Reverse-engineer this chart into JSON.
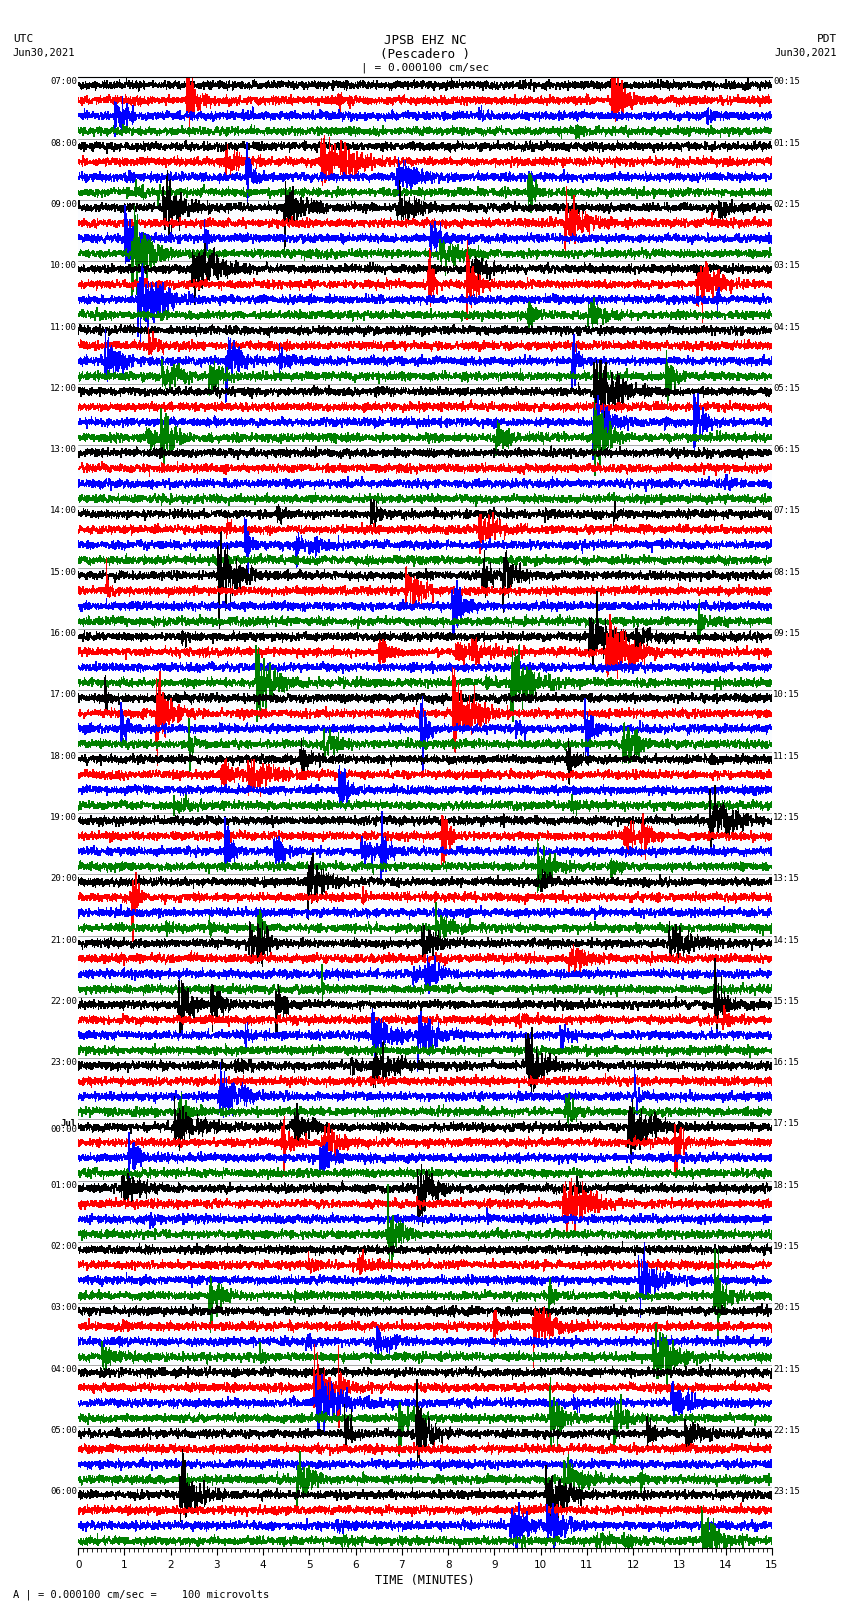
{
  "title_line1": "JPSB EHZ NC",
  "title_line2": "(Pescadero )",
  "scale_label": "| = 0.000100 cm/sec",
  "utc_label1": "UTC",
  "utc_label2": "Jun30,2021",
  "pdt_label1": "PDT",
  "pdt_label2": "Jun30,2021",
  "bottom_label": "A | = 0.000100 cm/sec =    100 microvolts",
  "xlabel": "TIME (MINUTES)",
  "left_times": [
    "07:00",
    "08:00",
    "09:00",
    "10:00",
    "11:00",
    "12:00",
    "13:00",
    "14:00",
    "15:00",
    "16:00",
    "17:00",
    "18:00",
    "19:00",
    "20:00",
    "21:00",
    "22:00",
    "23:00",
    "Jul",
    "01:00",
    "02:00",
    "03:00",
    "04:00",
    "05:00",
    "06:00"
  ],
  "left_times_sub": [
    "",
    "",
    "",
    "",
    "",
    "",
    "",
    "",
    "",
    "",
    "",
    "",
    "",
    "",
    "",
    "",
    "",
    "00:00",
    "",
    "",
    "",
    "",
    "",
    ""
  ],
  "right_times": [
    "00:15",
    "01:15",
    "02:15",
    "03:15",
    "04:15",
    "05:15",
    "06:15",
    "07:15",
    "08:15",
    "09:15",
    "10:15",
    "11:15",
    "12:15",
    "13:15",
    "14:15",
    "15:15",
    "16:15",
    "17:15",
    "18:15",
    "19:15",
    "20:15",
    "21:15",
    "22:15",
    "23:15"
  ],
  "colors": [
    "black",
    "red",
    "blue",
    "green"
  ],
  "num_rows": 24,
  "traces_per_row": 4,
  "figwidth": 8.5,
  "figheight": 16.13,
  "dpi": 100,
  "bg_color": "white",
  "seed": 42,
  "noise_base": 0.08,
  "event_prob": 0.3
}
